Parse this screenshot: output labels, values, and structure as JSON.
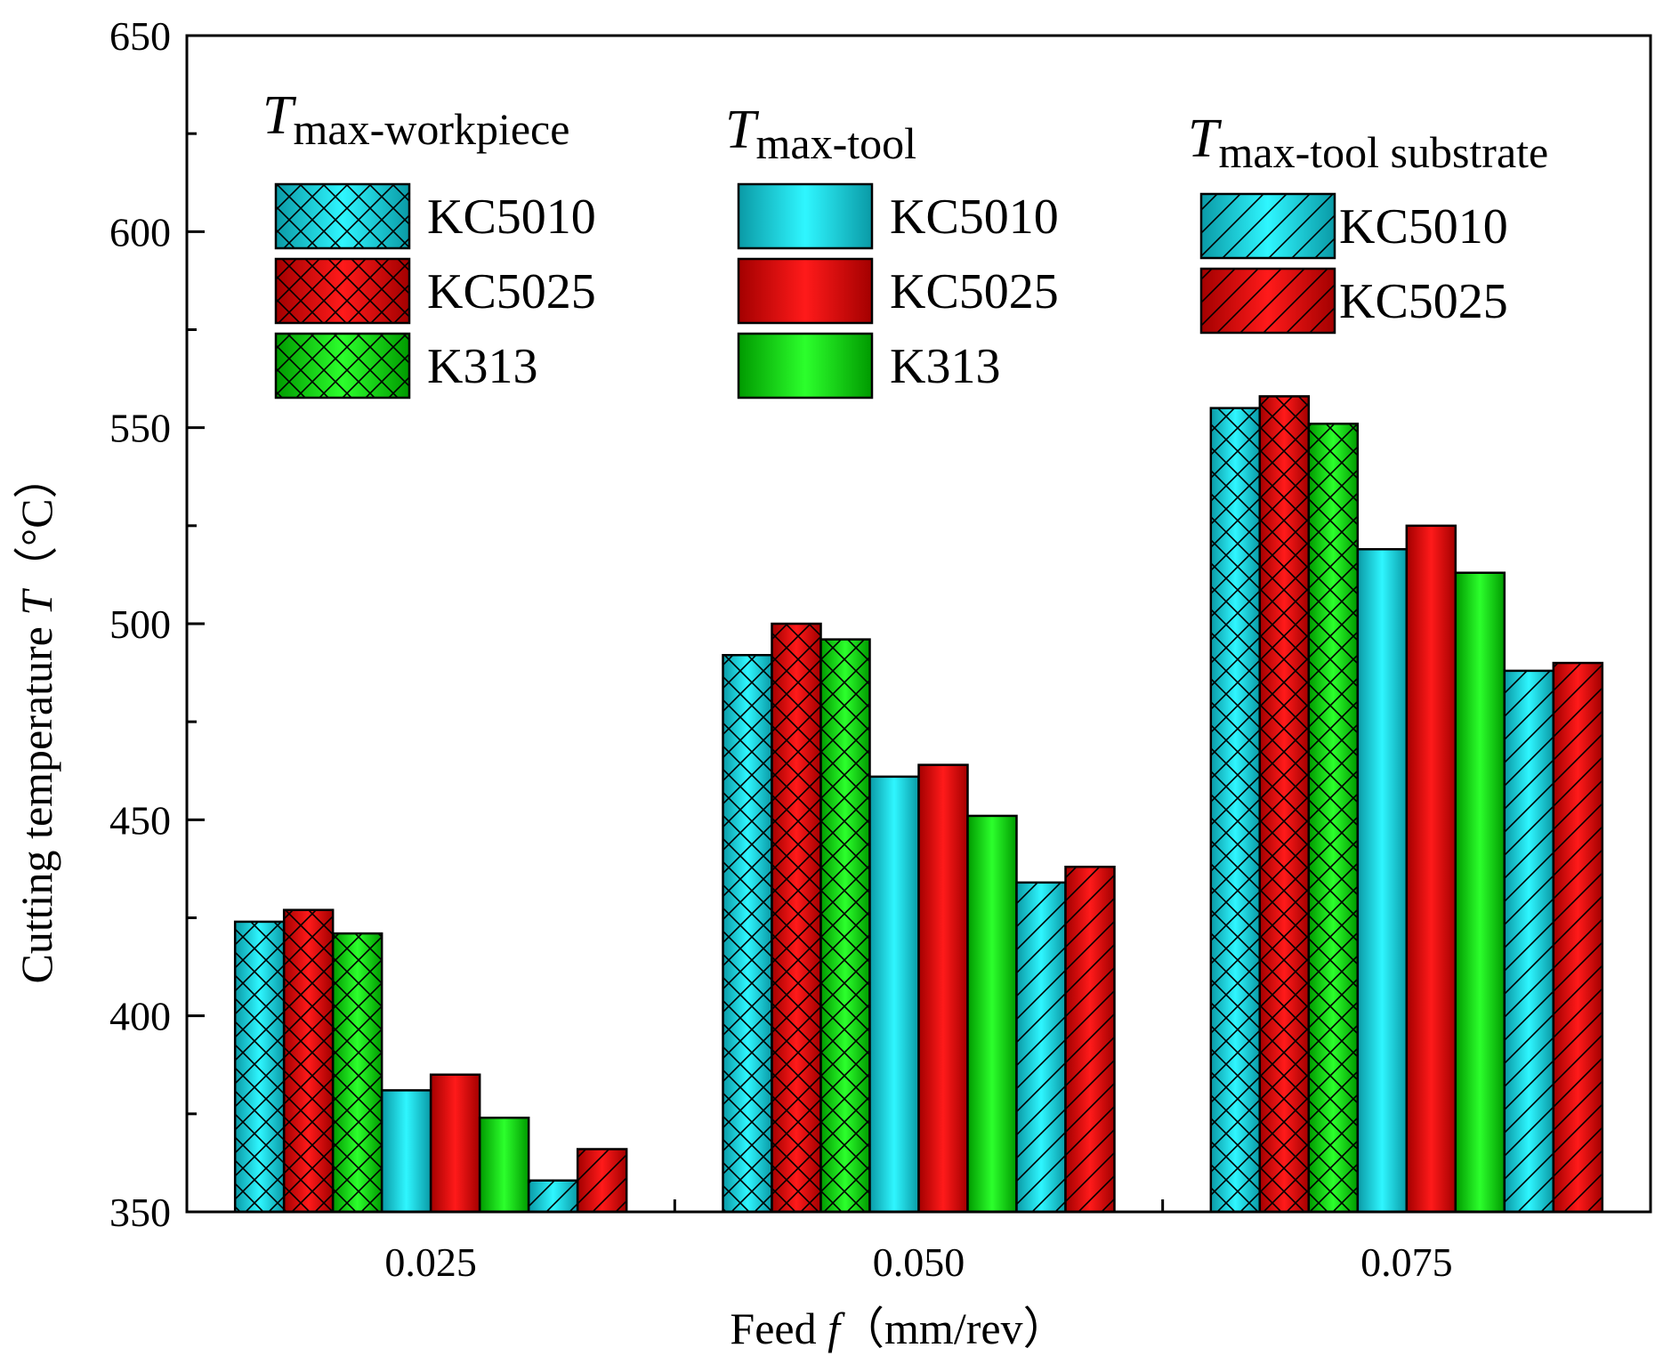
{
  "colors": {
    "cyan": "#00e5ee",
    "red": "#ff0000",
    "green": "#00e000",
    "axis": "#000000",
    "background": "#ffffff"
  },
  "chart_data": {
    "type": "bar",
    "categories": [
      "0.025",
      "0.050",
      "0.075"
    ],
    "xlabel": {
      "prefix": "Feed ",
      "symbol": "f",
      "unit": "（mm/rev）"
    },
    "ylabel": {
      "prefix": "Cutting temperature ",
      "symbol": "T",
      "unit": "（°C）"
    },
    "ylim": [
      350,
      650
    ],
    "yticks": [
      "350",
      "400",
      "450",
      "500",
      "550",
      "600",
      "650"
    ],
    "legend_groups": [
      {
        "symbol": "T",
        "subscript": "max-workpiece",
        "pattern": "crosshatch",
        "entries": [
          "KC5010",
          "KC5025",
          "K313"
        ]
      },
      {
        "symbol": "T",
        "subscript": "max-tool",
        "pattern": "solid",
        "entries": [
          "KC5010",
          "KC5025",
          "K313"
        ]
      },
      {
        "symbol": "T",
        "subscript": "max-tool substrate",
        "pattern": "diagonal",
        "entries": [
          "KC5010",
          "KC5025"
        ]
      }
    ],
    "series": [
      {
        "name": "Tmax-workpiece KC5010",
        "group": 0,
        "color": "cyan",
        "pattern": "crosshatch",
        "values": [
          424,
          492,
          555
        ]
      },
      {
        "name": "Tmax-workpiece KC5025",
        "group": 0,
        "color": "red",
        "pattern": "crosshatch",
        "values": [
          427,
          500,
          558
        ]
      },
      {
        "name": "Tmax-workpiece K313",
        "group": 0,
        "color": "green",
        "pattern": "crosshatch",
        "values": [
          421,
          496,
          551
        ]
      },
      {
        "name": "Tmax-tool KC5010",
        "group": 1,
        "color": "cyan",
        "pattern": "solid",
        "values": [
          381,
          461,
          519
        ]
      },
      {
        "name": "Tmax-tool KC5025",
        "group": 1,
        "color": "red",
        "pattern": "solid",
        "values": [
          385,
          464,
          525
        ]
      },
      {
        "name": "Tmax-tool K313",
        "group": 1,
        "color": "green",
        "pattern": "solid",
        "values": [
          374,
          451,
          513
        ]
      },
      {
        "name": "Tmax-tool substrate KC5010",
        "group": 2,
        "color": "cyan",
        "pattern": "diagonal",
        "values": [
          358,
          434,
          488
        ]
      },
      {
        "name": "Tmax-tool substrate KC5025",
        "group": 2,
        "color": "red",
        "pattern": "diagonal",
        "values": [
          366,
          438,
          490
        ]
      }
    ]
  }
}
